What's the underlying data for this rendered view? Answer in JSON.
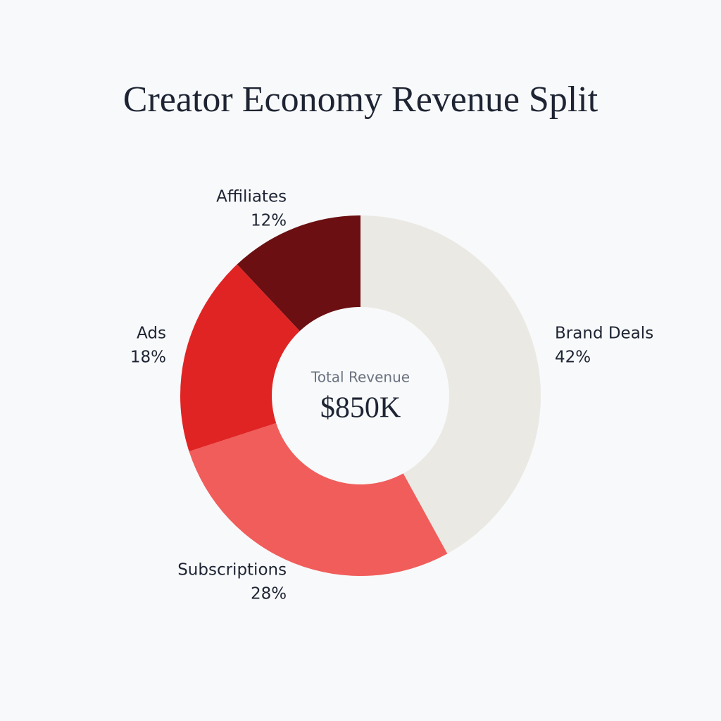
{
  "chart_data": {
    "type": "donut",
    "title": "Creator Economy Revenue Split",
    "categories": [
      "Brand Deals",
      "Subscriptions",
      "Ads",
      "Affiliates"
    ],
    "values": [
      42,
      28,
      18,
      12
    ],
    "value_labels": [
      "42%",
      "28%",
      "18%",
      "12%"
    ],
    "colors": [
      "#ebe9e4",
      "#f05d5b",
      "#e02424",
      "#6b0f12"
    ],
    "center_label": "Total Revenue",
    "center_value": "$850K"
  }
}
